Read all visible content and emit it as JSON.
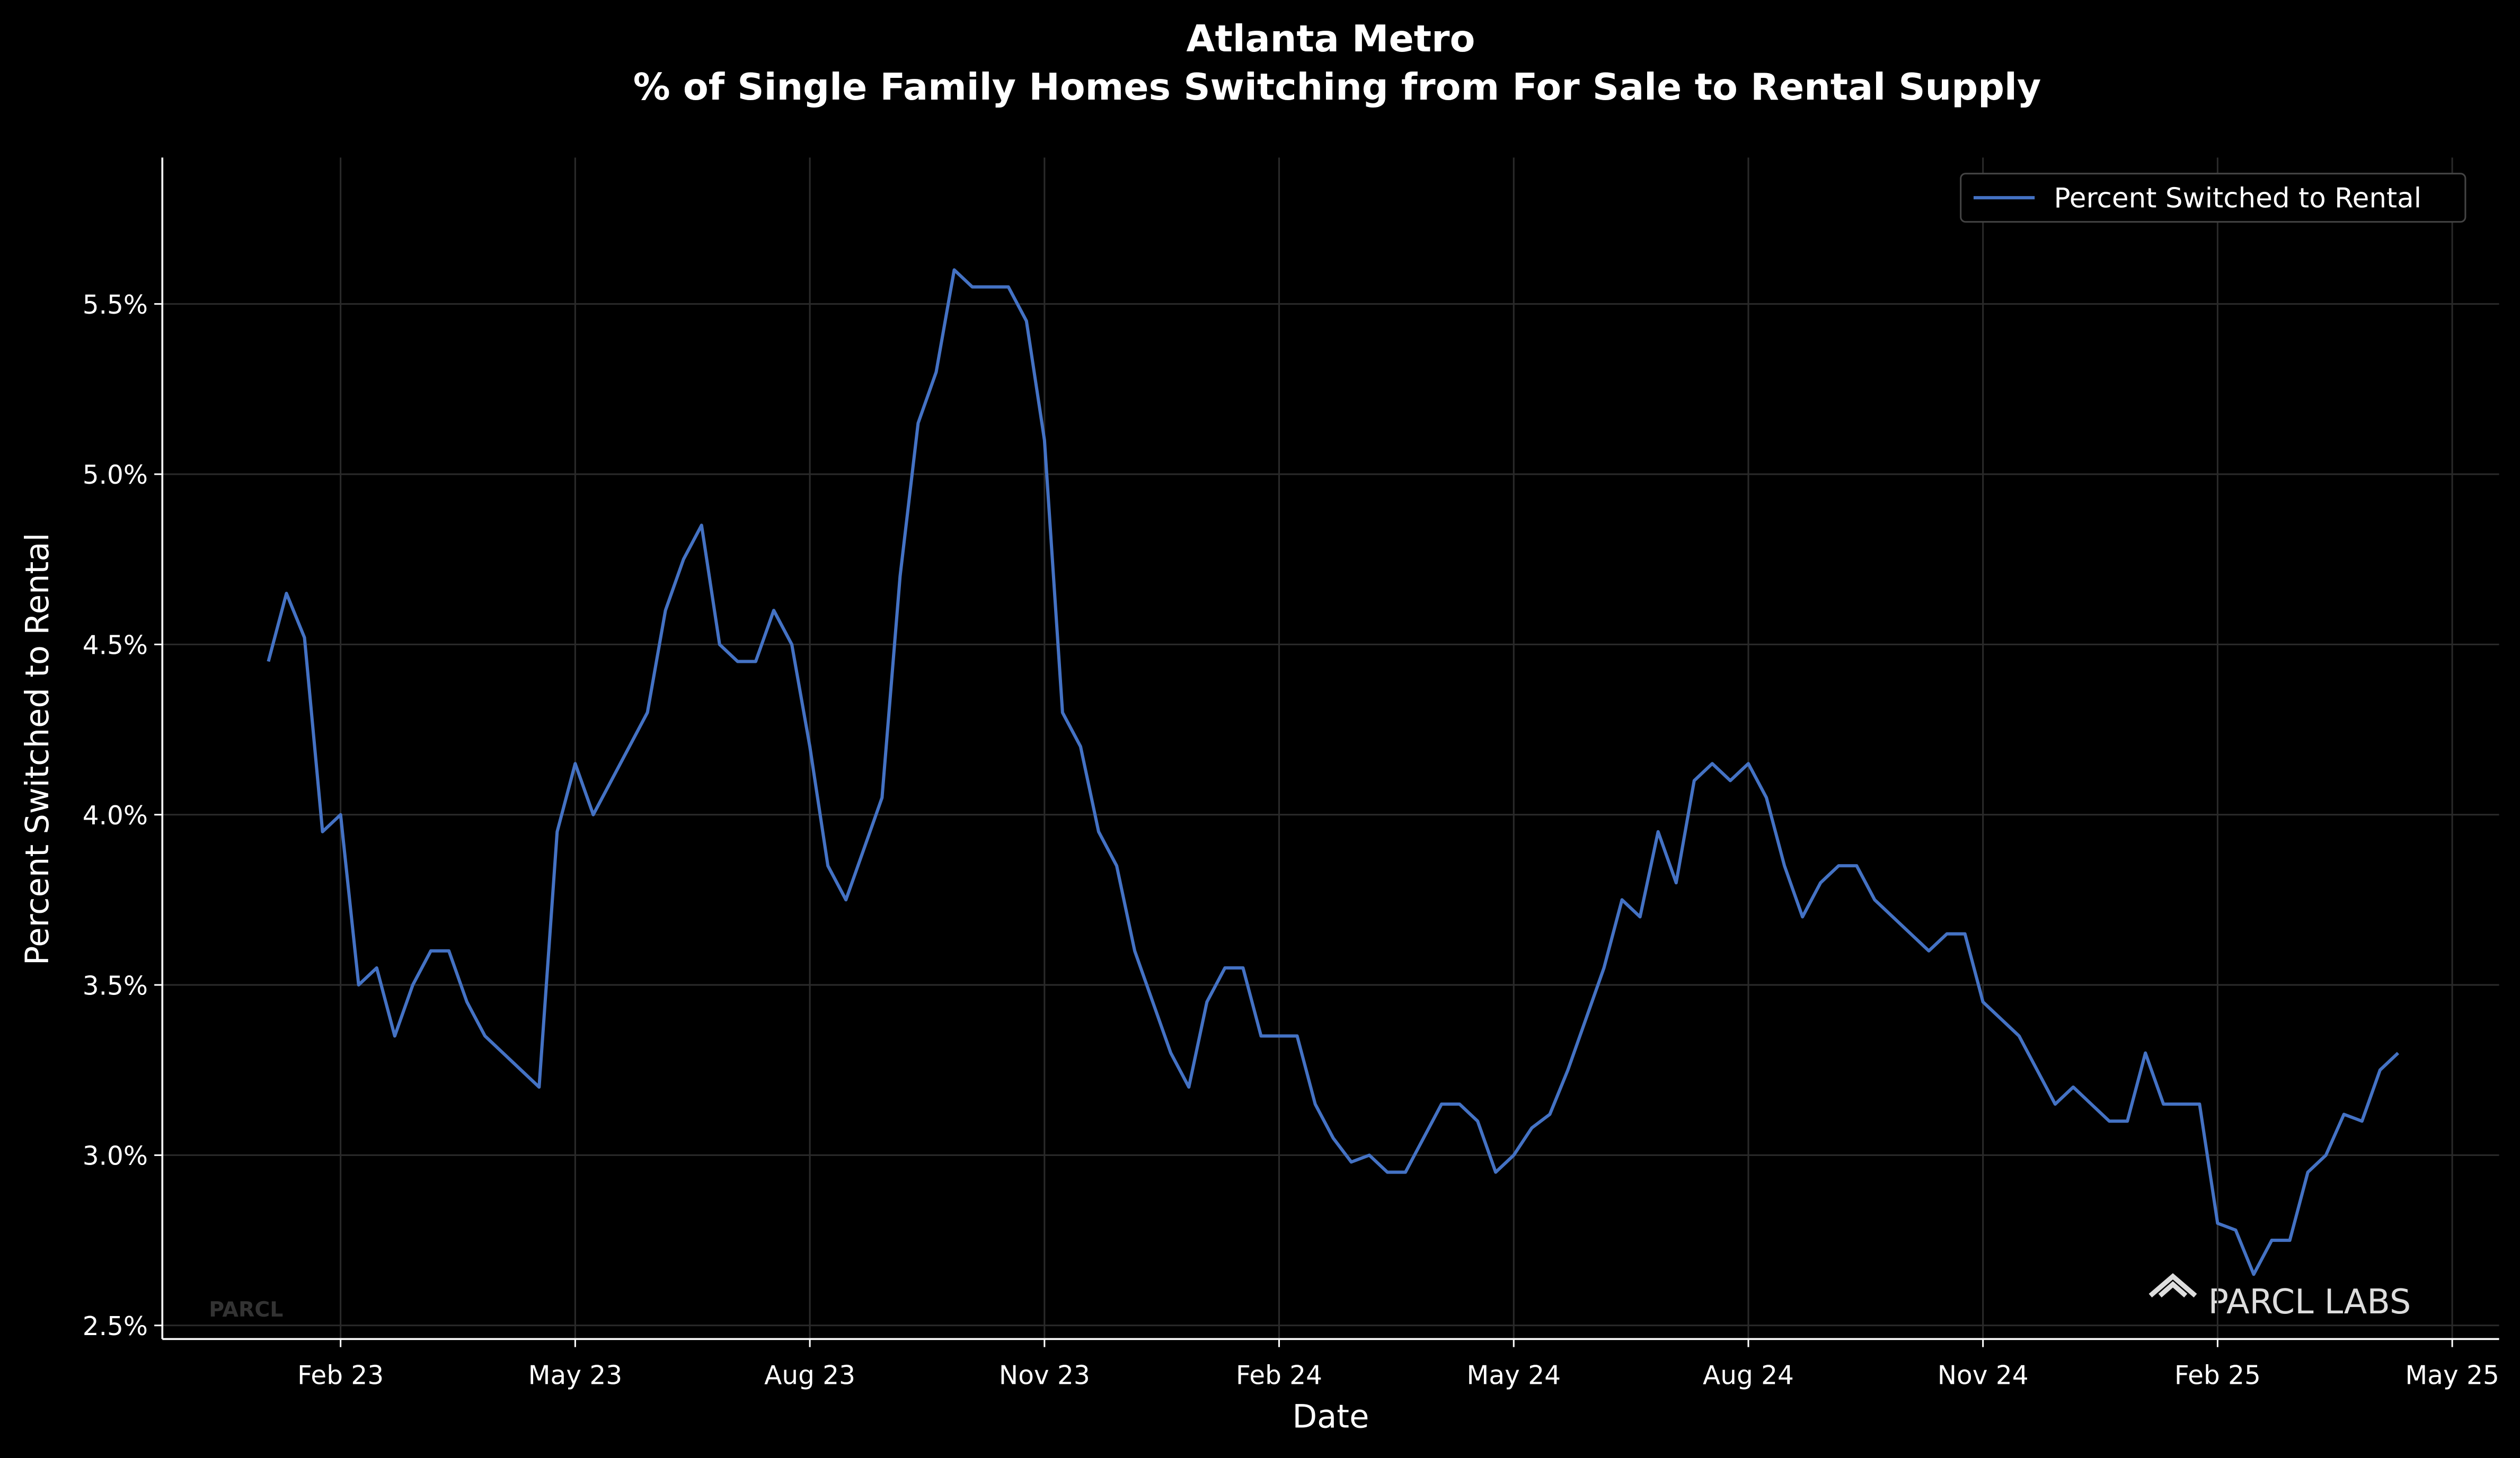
{
  "chart_data": {
    "type": "line",
    "title": "Atlanta Metro",
    "subtitle": "% of Single Family Homes Switching from For Sale to Rental Supply",
    "x_label": "Date",
    "y_label": "Percent Switched to Rental",
    "annotations": [
      "PARCL",
      "PARCL LABS"
    ],
    "categories": [
      null,
      null,
      null,
      null,
      "Feb 23",
      null,
      null,
      null,
      null,
      null,
      null,
      null,
      null,
      null,
      null,
      null,
      null,
      "May 23",
      null,
      null,
      null,
      null,
      null,
      null,
      null,
      null,
      null,
      null,
      null,
      null,
      "Aug 23",
      null,
      null,
      null,
      null,
      null,
      null,
      null,
      null,
      null,
      null,
      null,
      null,
      "Nov 23",
      null,
      null,
      null,
      null,
      null,
      null,
      null,
      null,
      null,
      null,
      null,
      null,
      "Feb 24",
      null,
      null,
      null,
      null,
      null,
      null,
      null,
      null,
      null,
      null,
      null,
      null,
      "May 24",
      null,
      null,
      null,
      null,
      null,
      null,
      null,
      null,
      null,
      null,
      null,
      null,
      "Aug 24",
      null,
      null,
      null,
      null,
      null,
      null,
      null,
      null,
      null,
      null,
      null,
      null,
      "Nov 24",
      null,
      null,
      null,
      null,
      null,
      null,
      null,
      null,
      null,
      null,
      null,
      null,
      "Feb 25",
      null,
      null,
      null,
      null,
      null,
      null,
      null,
      null,
      null,
      null,
      null,
      null,
      "May 25"
    ],
    "series": [
      {
        "name": "Percent Switched to Rental",
        "color": "#4472c4",
        "values": [
          4.45,
          4.65,
          4.52,
          3.95,
          4.0,
          3.5,
          3.55,
          3.35,
          3.5,
          3.6,
          3.6,
          3.45,
          3.35,
          3.3,
          3.25,
          3.2,
          3.95,
          4.15,
          4.0,
          4.1,
          4.2,
          4.3,
          4.6,
          4.75,
          4.85,
          4.5,
          4.45,
          4.45,
          4.6,
          4.5,
          4.2,
          3.85,
          3.75,
          3.9,
          4.05,
          4.7,
          5.15,
          5.3,
          5.6,
          5.55,
          5.55,
          5.55,
          5.45,
          5.1,
          4.3,
          4.2,
          3.95,
          3.85,
          3.6,
          3.45,
          3.3,
          3.2,
          3.45,
          3.55,
          3.55,
          3.35,
          3.35,
          3.35,
          3.15,
          3.05,
          2.98,
          3.0,
          2.95,
          2.95,
          3.05,
          3.15,
          3.15,
          3.1,
          2.95,
          3.0,
          3.08,
          3.12,
          3.25,
          3.4,
          3.55,
          3.75,
          3.7,
          3.95,
          3.8,
          4.1,
          4.15,
          4.1,
          4.15,
          4.05,
          3.85,
          3.7,
          3.8,
          3.85,
          3.85,
          3.75,
          3.7,
          3.65,
          3.6,
          3.65,
          3.65,
          3.45,
          3.4,
          3.35,
          3.25,
          3.15,
          3.2,
          3.15,
          3.1,
          3.1,
          3.3,
          3.15,
          3.15,
          3.15,
          2.8,
          2.78,
          2.65,
          2.75,
          2.75,
          2.95,
          3.0,
          3.12,
          3.1,
          3.25,
          3.3,
          null,
          null,
          null
        ]
      }
    ],
    "ylim": [
      2.46,
      5.93
    ],
    "yticks": [
      {
        "value": 2.5,
        "label": "2.5%"
      },
      {
        "value": 3.0,
        "label": "3.0%"
      },
      {
        "value": 3.5,
        "label": "3.5%"
      },
      {
        "value": 4.0,
        "label": "4.0%"
      },
      {
        "value": 4.5,
        "label": "4.5%"
      },
      {
        "value": 5.0,
        "label": "5.0%"
      },
      {
        "value": 5.5,
        "label": "5.5%"
      }
    ],
    "grid": true,
    "legend": "upper right"
  }
}
